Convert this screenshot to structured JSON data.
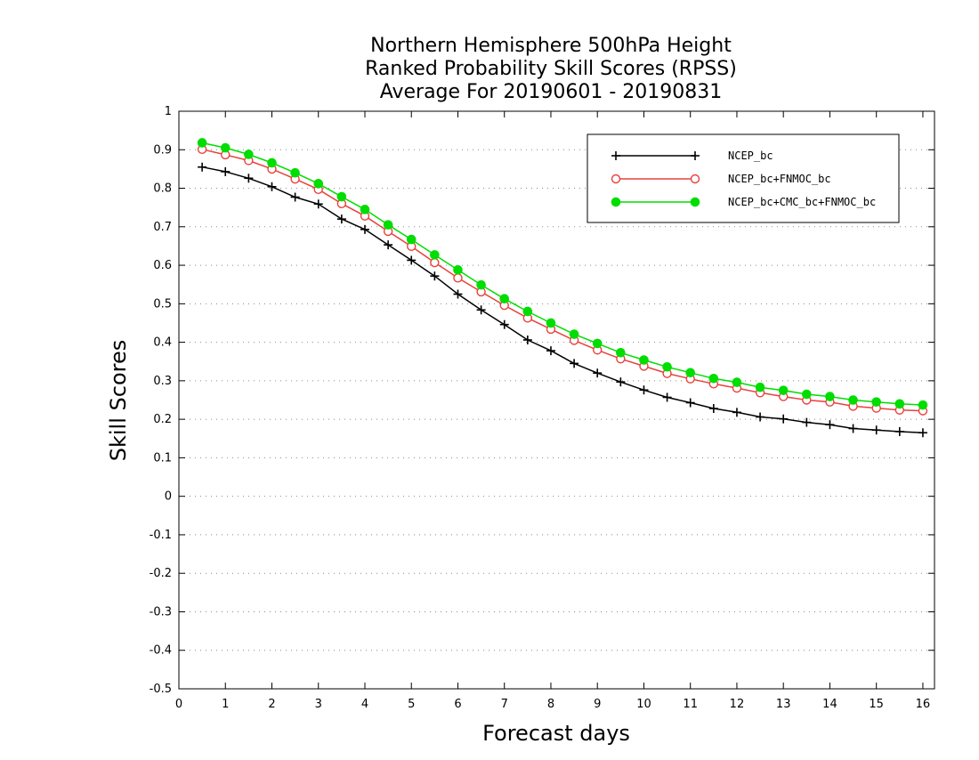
{
  "chart_data": {
    "type": "line",
    "title_lines": [
      "Northern Hemisphere 500hPa Height",
      "Ranked Probability Skill Scores (RPSS)",
      "Average For 20190601 - 20190831"
    ],
    "xlabel": "Forecast days",
    "ylabel": "Skill Scores",
    "xlim": [
      0,
      16.25
    ],
    "ylim": [
      -0.5,
      1.0
    ],
    "x_ticks": [
      0,
      1,
      2,
      3,
      4,
      5,
      6,
      7,
      8,
      9,
      10,
      11,
      12,
      13,
      14,
      15,
      16
    ],
    "y_ticks": [
      -0.5,
      -0.4,
      -0.3,
      -0.2,
      -0.1,
      0,
      0.1,
      0.2,
      0.3,
      0.4,
      0.5,
      0.6,
      0.7,
      0.8,
      0.9,
      1
    ],
    "y_tick_labels": [
      "-0.5",
      "-0.4",
      "-0.3",
      "-0.2",
      "-0.1",
      "0",
      "0.1",
      "0.2",
      "0.3",
      "0.4",
      "0.5",
      "0.6",
      "0.7",
      "0.8",
      "0.9",
      "1"
    ],
    "grid": "horizontal dotted",
    "legend_position": "top-right",
    "x": [
      0.5,
      1,
      1.5,
      2,
      2.5,
      3,
      3.5,
      4,
      4.5,
      5,
      5.5,
      6,
      6.5,
      7,
      7.5,
      8,
      8.5,
      9,
      9.5,
      10,
      10.5,
      11,
      11.5,
      12,
      12.5,
      13,
      13.5,
      14,
      14.5,
      15,
      15.5,
      16
    ],
    "series": [
      {
        "name": "NCEP_bc",
        "color": "#000000",
        "marker": "plus",
        "values": [
          0.855,
          0.843,
          0.826,
          0.804,
          0.777,
          0.759,
          0.72,
          0.693,
          0.653,
          0.613,
          0.572,
          0.525,
          0.484,
          0.446,
          0.406,
          0.378,
          0.345,
          0.32,
          0.297,
          0.276,
          0.257,
          0.243,
          0.228,
          0.218,
          0.206,
          0.201,
          0.192,
          0.186,
          0.176,
          0.172,
          0.168,
          0.165
        ]
      },
      {
        "name": "NCEP_bc+FNMOC_bc",
        "color": "#e8413c",
        "marker": "open-circle",
        "values": [
          0.901,
          0.887,
          0.872,
          0.85,
          0.824,
          0.797,
          0.76,
          0.728,
          0.688,
          0.649,
          0.607,
          0.567,
          0.531,
          0.496,
          0.463,
          0.434,
          0.405,
          0.38,
          0.357,
          0.338,
          0.319,
          0.305,
          0.292,
          0.281,
          0.269,
          0.259,
          0.25,
          0.245,
          0.234,
          0.229,
          0.224,
          0.222
        ]
      },
      {
        "name": "NCEP_bc+CMC_bc+FNMOC_bc",
        "color": "#00dd00",
        "marker": "filled-circle",
        "values": [
          0.918,
          0.905,
          0.888,
          0.866,
          0.84,
          0.812,
          0.778,
          0.745,
          0.705,
          0.667,
          0.627,
          0.588,
          0.549,
          0.513,
          0.48,
          0.45,
          0.421,
          0.397,
          0.373,
          0.354,
          0.336,
          0.321,
          0.306,
          0.296,
          0.283,
          0.275,
          0.265,
          0.259,
          0.25,
          0.245,
          0.24,
          0.237
        ]
      }
    ]
  }
}
